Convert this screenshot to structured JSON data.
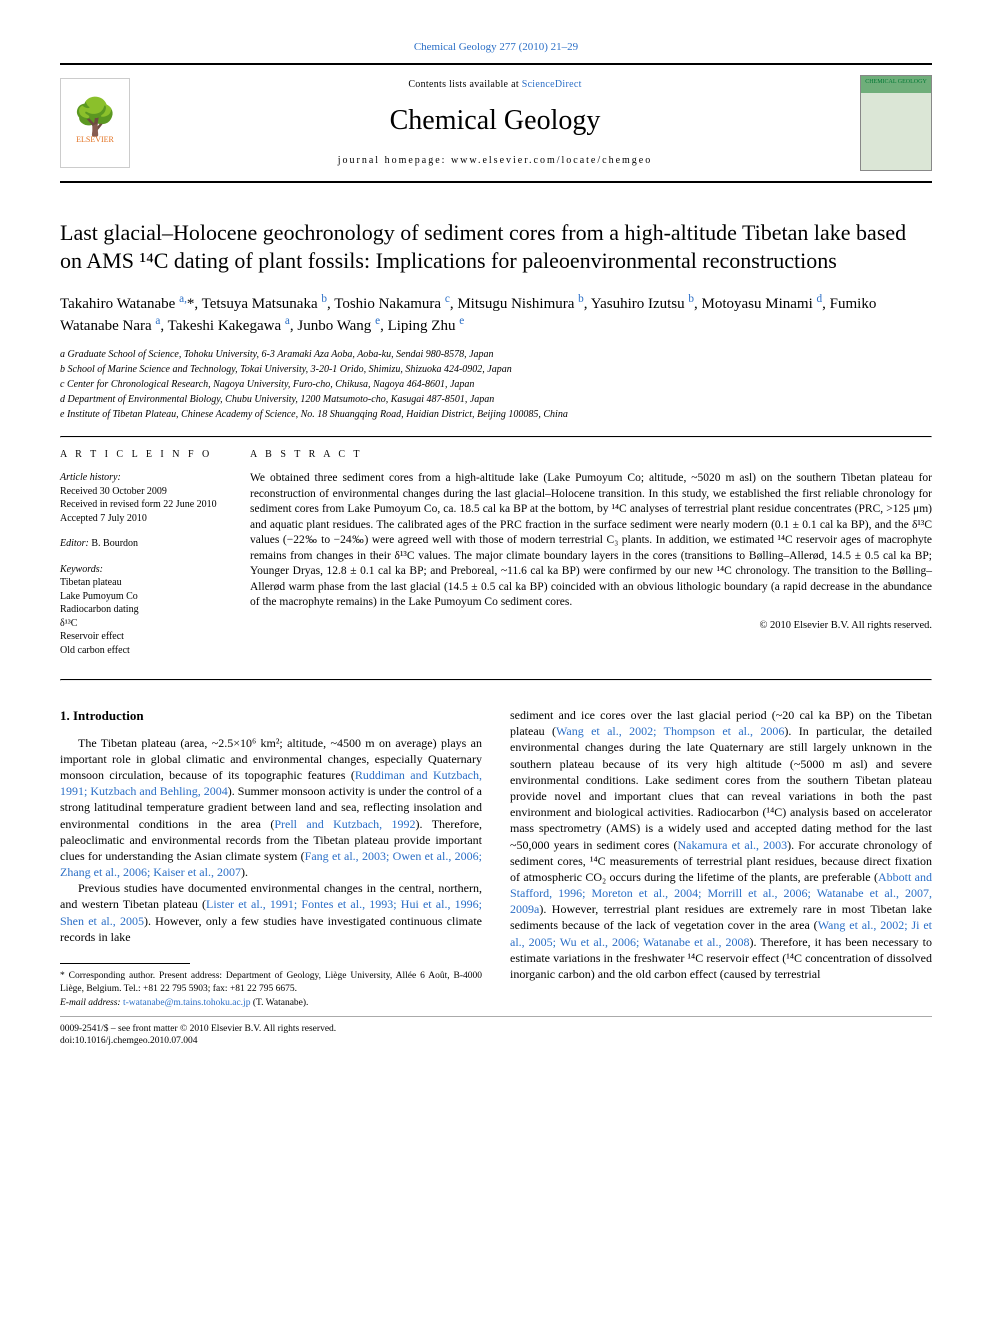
{
  "top_citation": "Chemical Geology 277 (2010) 21–29",
  "masthead": {
    "contents_prefix": "Contents lists available at ",
    "contents_link": "ScienceDirect",
    "journal": "Chemical Geology",
    "homepage_label": "journal homepage: www.elsevier.com/locate/chemgeo",
    "publisher_label": "ELSEVIER",
    "cover_label": "CHEMICAL GEOLOGY"
  },
  "article": {
    "title": "Last glacial–Holocene geochronology of sediment cores from a high-altitude Tibetan lake based on AMS ¹⁴C dating of plant fossils: Implications for paleoenvironmental reconstructions",
    "authors_html": "Takahiro Watanabe <a href='#'><sup>a,</sup></a>*, Tetsuya Matsunaka <a href='#'><sup>b</sup></a>, Toshio Nakamura <a href='#'><sup>c</sup></a>, Mitsugu Nishimura <a href='#'><sup>b</sup></a>, Yasuhiro Izutsu <a href='#'><sup>b</sup></a>, Motoyasu Minami <a href='#'><sup>d</sup></a>, Fumiko Watanabe Nara <a href='#'><sup>a</sup></a>, Takeshi Kakegawa <a href='#'><sup>a</sup></a>, Junbo Wang <a href='#'><sup>e</sup></a>, Liping Zhu <a href='#'><sup>e</sup></a>",
    "affiliations": [
      "a Graduate School of Science, Tohoku University, 6-3 Aramaki Aza Aoba, Aoba-ku, Sendai 980-8578, Japan",
      "b School of Marine Science and Technology, Tokai University, 3-20-1 Orido, Shimizu, Shizuoka 424-0902, Japan",
      "c Center for Chronological Research, Nagoya University, Furo-cho, Chikusa, Nagoya 464-8601, Japan",
      "d Department of Environmental Biology, Chubu University, 1200 Matsumoto-cho, Kasugai 487-8501, Japan",
      "e Institute of Tibetan Plateau, Chinese Academy of Science, No. 18 Shuangqing Road, Haidian District, Beijing 100085, China"
    ]
  },
  "info": {
    "heading": "A R T I C L E   I N F O",
    "history_label": "Article history:",
    "history": [
      "Received 30 October 2009",
      "Received in revised form 22 June 2010",
      "Accepted 7 July 2010"
    ],
    "editor_label": "Editor:",
    "editor": "B. Bourdon",
    "keywords_label": "Keywords:",
    "keywords": [
      "Tibetan plateau",
      "Lake Pumoyum Co",
      "Radiocarbon dating",
      "δ¹³C",
      "Reservoir effect",
      "Old carbon effect"
    ]
  },
  "abstract": {
    "heading": "A B S T R A C T",
    "text": "We obtained three sediment cores from a high-altitude lake (Lake Pumoyum Co; altitude, ~5020 m asl) on the southern Tibetan plateau for reconstruction of environmental changes during the last glacial–Holocene transition. In this study, we established the first reliable chronology for sediment cores from Lake Pumoyum Co, ca. 18.5 cal ka BP at the bottom, by ¹⁴C analyses of terrestrial plant residue concentrates (PRC, >125 μm) and aquatic plant residues. The calibrated ages of the PRC fraction in the surface sediment were nearly modern (0.1 ± 0.1 cal ka BP), and the δ¹³C values (−22‰ to −24‰) were agreed well with those of modern terrestrial C₃ plants. In addition, we estimated ¹⁴C reservoir ages of macrophyte remains from changes in their δ¹³C values. The major climate boundary layers in the cores (transitions to Bølling–Allerød, 14.5 ± 0.5 cal ka BP; Younger Dryas, 12.8 ± 0.1 cal ka BP; and Preboreal, ~11.6 cal ka BP) were confirmed by our new ¹⁴C chronology. The transition to the Bølling–Allerød warm phase from the last glacial (14.5 ± 0.5 cal ka BP) coincided with an obvious lithologic boundary (a rapid decrease in the abundance of the macrophyte remains) in the Lake Pumoyum Co sediment cores.",
    "copyright": "© 2010 Elsevier B.V. All rights reserved."
  },
  "body": {
    "intro_heading": "1. Introduction",
    "para1_html": "The Tibetan plateau (area, ~2.5×10⁶ km²; altitude, ~4500 m on average) plays an important role in global climatic and environmental changes, especially Quaternary monsoon circulation, because of its topographic features (<a href='#'>Ruddiman and Kutzbach, 1991; Kutzbach and Behling, 2004</a>). Summer monsoon activity is under the control of a strong latitudinal temperature gradient between land and sea, reflecting insolation and environmental conditions in the area (<a href='#'>Prell and Kutzbach, 1992</a>). Therefore, paleoclimatic and environmental records from the Tibetan plateau provide important clues for understanding the Asian climate system (<a href='#'>Fang et al., 2003; Owen et al., 2006; Zhang et al., 2006; Kaiser et al., 2007</a>).",
    "para2_html": "Previous studies have documented environmental changes in the central, northern, and western Tibetan plateau (<a href='#'>Lister et al., 1991; Fontes et al., 1993; Hui et al., 1996; Shen et al., 2005</a>). However, only a few studies have investigated continuous climate records in lake",
    "col2_html": "sediment and ice cores over the last glacial period (~20 cal ka BP) on the Tibetan plateau (<a href='#'>Wang et al., 2002; Thompson et al., 2006</a>). In particular, the detailed environmental changes during the late Quaternary are still largely unknown in the southern plateau because of its very high altitude (~5000 m asl) and severe environmental conditions. Lake sediment cores from the southern Tibetan plateau provide novel and important clues that can reveal variations in both the past environment and biological activities. Radiocarbon (¹⁴C) analysis based on accelerator mass spectrometry (AMS) is a widely used and accepted dating method for the last ~50,000 years in sediment cores (<a href='#'>Nakamura et al., 2003</a>). For accurate chronology of sediment cores, ¹⁴C measurements of terrestrial plant residues, because direct fixation of atmospheric CO₂ occurs during the lifetime of the plants, are preferable (<a href='#'>Abbott and Stafford, 1996; Moreton et al., 2004; Morrill et al., 2006; Watanabe et al., 2007, 2009a</a>). However, terrestrial plant residues are extremely rare in most Tibetan lake sediments because of the lack of vegetation cover in the area (<a href='#'>Wang et al., 2002; Ji et al., 2005; Wu et al., 2006; Watanabe et al., 2008</a>). Therefore, it has been necessary to estimate variations in the freshwater ¹⁴C reservoir effect (¹⁴C concentration of dissolved inorganic carbon) and the old carbon effect (caused by terrestrial"
  },
  "footnotes": {
    "corr_html": "* Corresponding author. Present address: Department of Geology, Liège University, Allée 6 Août, B-4000 Liège, Belgium. Tel.: +81 22 795 5903; fax: +81 22 795 6675.",
    "email_label": "E-mail address:",
    "email": "t-watanabe@m.tains.tohoku.ac.jp",
    "email_suffix": "(T. Watanabe)."
  },
  "footer": {
    "line1": "0009-2541/$ – see front matter © 2010 Elsevier B.V. All rights reserved.",
    "doi": "doi:10.1016/j.chemgeo.2010.07.004"
  },
  "colors": {
    "link": "#2a6ec6",
    "rule": "#000000",
    "elsevier_orange": "#e37222",
    "cover_green": "#6fae7a"
  }
}
